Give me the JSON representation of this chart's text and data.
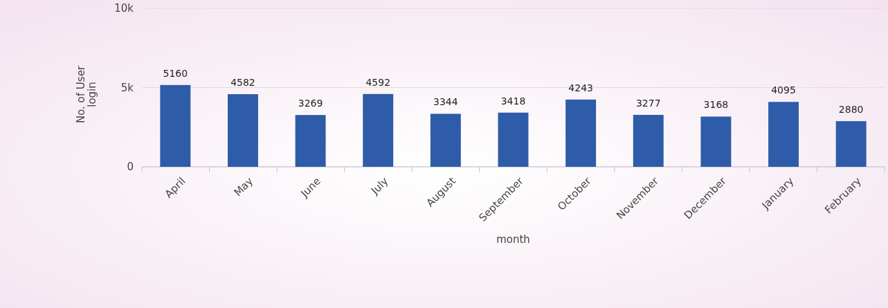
{
  "chart_data": {
    "type": "bar",
    "xlabel": "month",
    "ylabel": "No. of User login",
    "categories": [
      "April",
      "May",
      "June",
      "July",
      "August",
      "September",
      "October",
      "November",
      "December",
      "January",
      "February"
    ],
    "values": [
      5160,
      4582,
      3269,
      4592,
      3344,
      3418,
      4243,
      3277,
      3168,
      4095,
      2880
    ],
    "color": "#2f5ca8",
    "ylim": [
      0,
      10000
    ],
    "yticks": [
      {
        "value": 0,
        "label": "0"
      },
      {
        "value": 5000,
        "label": "5k"
      },
      {
        "value": 10000,
        "label": "10k"
      }
    ],
    "grid": "y",
    "data_labels": true
  }
}
